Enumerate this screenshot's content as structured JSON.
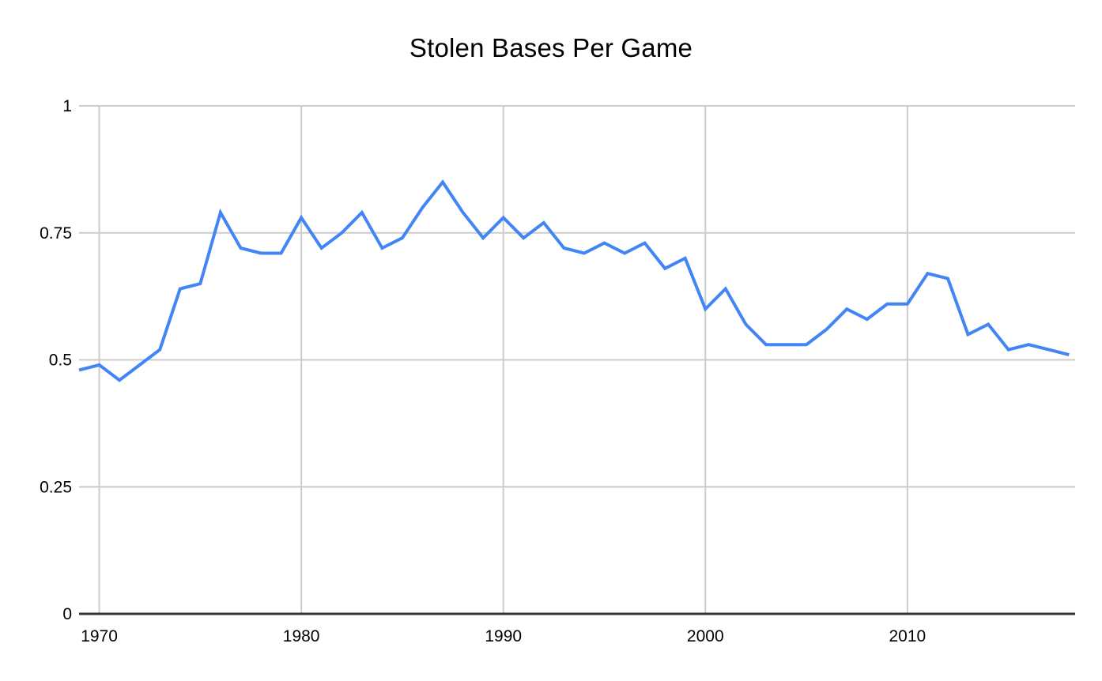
{
  "chart_data": {
    "type": "line",
    "title": "Stolen Bases Per Game",
    "x": [
      1969,
      1970,
      1971,
      1972,
      1973,
      1974,
      1975,
      1976,
      1977,
      1978,
      1979,
      1980,
      1981,
      1982,
      1983,
      1984,
      1985,
      1986,
      1987,
      1988,
      1989,
      1990,
      1991,
      1992,
      1993,
      1994,
      1995,
      1996,
      1997,
      1998,
      1999,
      2000,
      2001,
      2002,
      2003,
      2004,
      2005,
      2006,
      2007,
      2008,
      2009,
      2010,
      2011,
      2012,
      2013,
      2014,
      2015,
      2016,
      2017,
      2018
    ],
    "values": [
      0.48,
      0.49,
      0.46,
      0.49,
      0.52,
      0.64,
      0.65,
      0.79,
      0.72,
      0.71,
      0.71,
      0.78,
      0.72,
      0.75,
      0.79,
      0.72,
      0.74,
      0.8,
      0.85,
      0.79,
      0.74,
      0.78,
      0.74,
      0.77,
      0.72,
      0.71,
      0.73,
      0.71,
      0.73,
      0.68,
      0.7,
      0.6,
      0.64,
      0.57,
      0.53,
      0.53,
      0.53,
      0.56,
      0.6,
      0.58,
      0.61,
      0.61,
      0.67,
      0.66,
      0.55,
      0.57,
      0.52,
      0.53,
      0.52,
      0.51
    ],
    "xlabel": "",
    "ylabel": "",
    "xlim": [
      1969,
      2018.3
    ],
    "ylim": [
      0,
      1
    ],
    "x_ticks": {
      "values": [
        1970,
        1980,
        1990,
        2000,
        2010
      ],
      "labels": [
        "1970",
        "1980",
        "1990",
        "2000",
        "2010"
      ]
    },
    "y_ticks": {
      "values": [
        0,
        0.25,
        0.5,
        0.75,
        1
      ],
      "labels": [
        "0",
        "0.25",
        "0.5",
        "0.75",
        "1"
      ]
    },
    "grid": true,
    "legend": "none",
    "line_color": "#4285f4",
    "grid_color": "#cccccc",
    "axis_line_color": "#333333",
    "text_color": "#000000",
    "background": "#ffffff"
  }
}
